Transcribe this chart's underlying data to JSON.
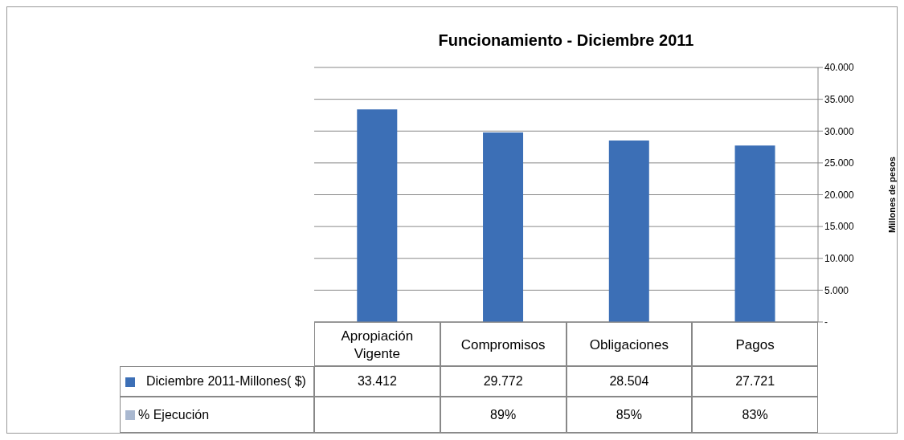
{
  "chart_data": {
    "type": "bar",
    "title": "Funcionamiento - Diciembre 2011",
    "ylabel": "Millones de pesos",
    "categories": [
      "Apropiación Vigente",
      "Compromisos",
      "Obligaciones",
      "Pagos"
    ],
    "series": [
      {
        "name": "Diciembre 2011-Millones( $)",
        "color": "#3c6fb6",
        "values": [
          33412,
          29772,
          28504,
          27721
        ],
        "value_labels": [
          "33.412",
          "29.772",
          "28.504",
          "27.721"
        ]
      }
    ],
    "ylim": [
      0,
      40000
    ],
    "yticks": [
      {
        "value": 0,
        "label": "-"
      },
      {
        "value": 5000,
        "label": "5.000"
      },
      {
        "value": 10000,
        "label": "10.000"
      },
      {
        "value": 15000,
        "label": "15.000"
      },
      {
        "value": 20000,
        "label": "20.000"
      },
      {
        "value": 25000,
        "label": "25.000"
      },
      {
        "value": 30000,
        "label": "30.000"
      },
      {
        "value": 35000,
        "label": "35.000"
      },
      {
        "value": 40000,
        "label": "40.000"
      }
    ],
    "grid": "y",
    "legend": "bottom",
    "annotations": [
      "% Ejecución",
      "89%",
      "85%",
      "83%"
    ]
  }
}
